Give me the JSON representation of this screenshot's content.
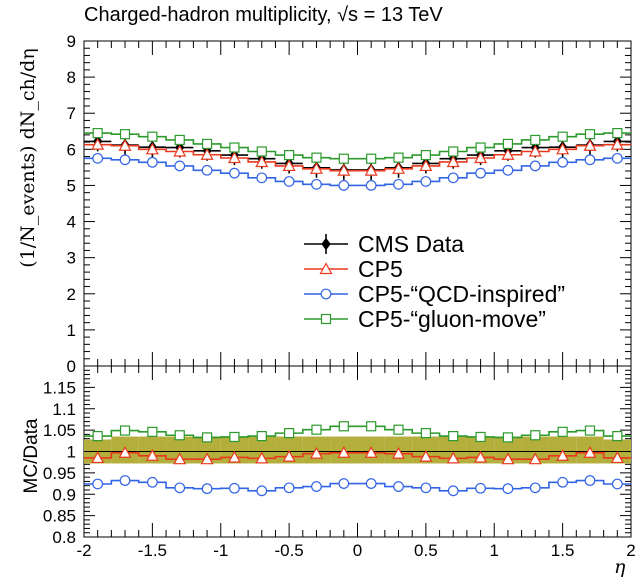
{
  "header": {
    "title": "Charged-hadron multiplicity, √s = 13 TeV"
  },
  "axis": {
    "top_ylabel": "(1/N_events) dN_ch/dη",
    "bottom_ylabel": "MC/Data",
    "xlabel": "η"
  },
  "chart_data": [
    {
      "type": "line",
      "panel": "main",
      "x": [
        -1.9,
        -1.7,
        -1.5,
        -1.3,
        -1.1,
        -0.9,
        -0.7,
        -0.5,
        -0.3,
        -0.1,
        0.1,
        0.3,
        0.5,
        0.7,
        0.9,
        1.1,
        1.3,
        1.5,
        1.7,
        1.9
      ],
      "xlim": [
        -2,
        2
      ],
      "ylim": [
        0,
        9
      ],
      "yticks": [
        0,
        1,
        2,
        3,
        4,
        5,
        6,
        7,
        8,
        9
      ],
      "legend": "center-right",
      "series": [
        {
          "name": "CMS Data",
          "color": "#000000",
          "marker": "filled-diamond",
          "values": [
            6.22,
            6.12,
            6.06,
            6.05,
            5.96,
            5.84,
            5.74,
            5.61,
            5.49,
            5.43,
            5.43,
            5.49,
            5.61,
            5.74,
            5.84,
            5.96,
            6.05,
            6.06,
            6.12,
            6.22
          ]
        },
        {
          "name": "CP5",
          "color": "#e8391e",
          "marker": "open-triangle",
          "values": [
            6.13,
            6.1,
            6.0,
            5.94,
            5.85,
            5.76,
            5.65,
            5.54,
            5.46,
            5.41,
            5.41,
            5.46,
            5.54,
            5.65,
            5.76,
            5.85,
            5.94,
            6.0,
            6.1,
            6.13
          ]
        },
        {
          "name": "CP5-“QCD-inspired”",
          "color": "#3264e6",
          "marker": "open-circle",
          "values": [
            5.75,
            5.71,
            5.64,
            5.54,
            5.42,
            5.34,
            5.21,
            5.11,
            5.03,
            5.0,
            5.0,
            5.03,
            5.11,
            5.21,
            5.34,
            5.42,
            5.54,
            5.64,
            5.71,
            5.75
          ]
        },
        {
          "name": "CP5-“gluon-move”",
          "color": "#2c9a2c",
          "marker": "open-square",
          "values": [
            6.45,
            6.42,
            6.35,
            6.26,
            6.15,
            6.05,
            5.94,
            5.84,
            5.77,
            5.74,
            5.74,
            5.77,
            5.84,
            5.94,
            6.05,
            6.15,
            6.26,
            6.35,
            6.42,
            6.45
          ]
        }
      ]
    },
    {
      "type": "line",
      "panel": "ratio",
      "x": [
        -1.9,
        -1.7,
        -1.5,
        -1.3,
        -1.1,
        -0.9,
        -0.7,
        -0.5,
        -0.3,
        -0.1,
        0.1,
        0.3,
        0.5,
        0.7,
        0.9,
        1.1,
        1.3,
        1.5,
        1.7,
        1.9
      ],
      "xlim": [
        -2,
        2
      ],
      "xticks": [
        "-2",
        "-1.5",
        "-1",
        "-0.5",
        "0",
        "0.5",
        "1",
        "1.5",
        "2"
      ],
      "ylim": [
        0.8,
        1.2
      ],
      "yticks": [
        "0.8",
        "0.85",
        "0.9",
        "0.95",
        "1",
        "1.05",
        "1.1",
        "1.15"
      ],
      "band": {
        "color": "#b4ae3c",
        "lo": [
          0.972,
          0.972,
          0.972,
          0.972,
          0.972,
          0.972,
          0.972,
          0.972,
          0.972,
          0.972,
          0.972,
          0.972,
          0.972,
          0.972,
          0.972,
          0.972,
          0.972,
          0.972,
          0.972,
          0.972
        ],
        "hi": [
          1.028,
          1.035,
          1.035,
          1.035,
          1.035,
          1.035,
          1.035,
          1.035,
          1.035,
          1.035,
          1.035,
          1.035,
          1.035,
          1.035,
          1.035,
          1.035,
          1.035,
          1.035,
          1.035,
          1.028
        ]
      },
      "series": [
        {
          "name": "CP5",
          "color": "#e8391e",
          "marker": "open-triangle",
          "values": [
            0.985,
            0.997,
            0.99,
            0.982,
            0.982,
            0.986,
            0.984,
            0.988,
            0.995,
            0.997,
            0.997,
            0.995,
            0.988,
            0.984,
            0.986,
            0.982,
            0.982,
            0.99,
            0.997,
            0.985
          ]
        },
        {
          "name": "CP5-“QCD-inspired”",
          "color": "#3264e6",
          "marker": "open-circle",
          "values": [
            0.924,
            0.932,
            0.928,
            0.915,
            0.913,
            0.914,
            0.908,
            0.915,
            0.918,
            0.925,
            0.925,
            0.918,
            0.915,
            0.908,
            0.914,
            0.913,
            0.915,
            0.928,
            0.932,
            0.924
          ]
        },
        {
          "name": "CP5-“gluon-move”",
          "color": "#2c9a2c",
          "marker": "open-square",
          "values": [
            1.036,
            1.049,
            1.046,
            1.038,
            1.033,
            1.034,
            1.036,
            1.043,
            1.051,
            1.059,
            1.059,
            1.051,
            1.043,
            1.036,
            1.034,
            1.033,
            1.038,
            1.046,
            1.049,
            1.036
          ]
        }
      ]
    }
  ]
}
